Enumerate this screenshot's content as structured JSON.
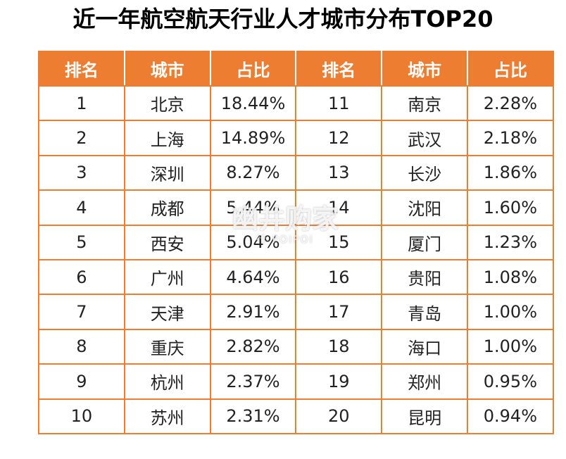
{
  "title": "近一年航空航天行业人才城市分布TOP20",
  "table": {
    "headers": [
      "排名",
      "城市",
      "占比",
      "排名",
      "城市",
      "占比"
    ],
    "rows": [
      [
        "1",
        "北京",
        "18.44%",
        "11",
        "南京",
        "2.28%"
      ],
      [
        "2",
        "上海",
        "14.89%",
        "12",
        "武汉",
        "2.18%"
      ],
      [
        "3",
        "深圳",
        "8.27%",
        "13",
        "长沙",
        "1.86%"
      ],
      [
        "4",
        "成都",
        "5.44%",
        "14",
        "沈阳",
        "1.60%"
      ],
      [
        "5",
        "西安",
        "5.04%",
        "15",
        "厦门",
        "1.23%"
      ],
      [
        "6",
        "广州",
        "4.64%",
        "16",
        "贵阳",
        "1.08%"
      ],
      [
        "7",
        "天津",
        "2.91%",
        "17",
        "青岛",
        "1.00%"
      ],
      [
        "8",
        "重庆",
        "2.82%",
        "18",
        "海口",
        "1.00%"
      ],
      [
        "9",
        "杭州",
        "2.37%",
        "19",
        "郑州",
        "0.95%"
      ],
      [
        "10",
        "苏州",
        "2.31%",
        "20",
        "昆明",
        "0.94%"
      ]
    ]
  },
  "watermark": {
    "main": "幽井购家",
    "sub": "行 POIPOI"
  },
  "colors": {
    "header_bg": "#ED7D31",
    "border": "#ED7D31",
    "header_text": "#FFFFFF"
  }
}
